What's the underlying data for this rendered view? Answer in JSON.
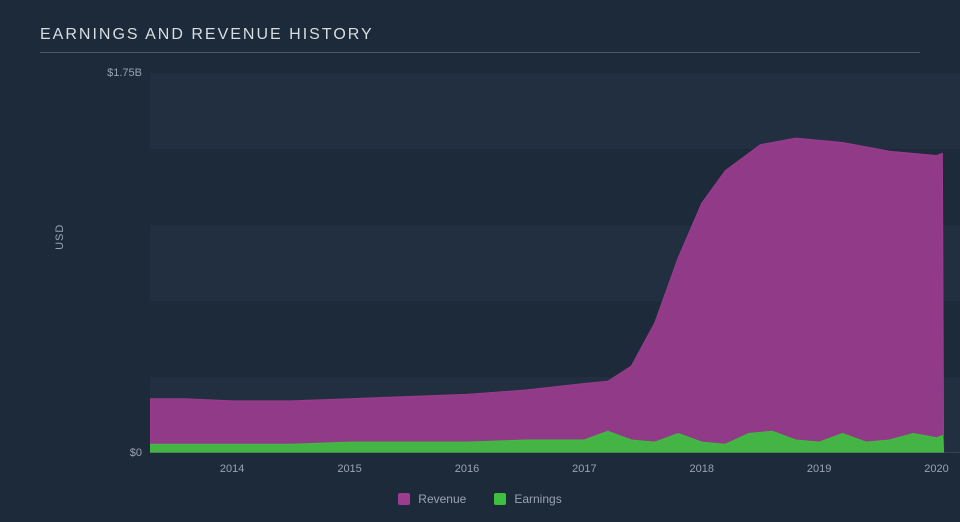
{
  "chart": {
    "type": "area",
    "title": "EARNINGS AND REVENUE HISTORY",
    "ylabel": "USD",
    "background_color": "#1c2a3a",
    "band_color": "#222f40",
    "grid_color": "#4a5664",
    "text_color": "#9aa3b0",
    "title_color": "#d8dde3",
    "title_fontsize": 16,
    "label_fontsize": 11,
    "ylim": [
      0,
      1.75
    ],
    "ytick_ref": 1.75,
    "yticks": [
      {
        "v": 0,
        "label": "$0"
      },
      {
        "v": 1.75,
        "label": "$1.75B"
      }
    ],
    "xlim": [
      2013.3,
      2020.2
    ],
    "xticks": [
      2014,
      2015,
      2016,
      2017,
      2018,
      2019,
      2020
    ],
    "series": [
      {
        "name": "Revenue",
        "color": "#9b3c8e",
        "data": [
          {
            "x": 2013.3,
            "y": 0.25
          },
          {
            "x": 2013.6,
            "y": 0.25
          },
          {
            "x": 2014.0,
            "y": 0.24
          },
          {
            "x": 2014.5,
            "y": 0.24
          },
          {
            "x": 2015.0,
            "y": 0.25
          },
          {
            "x": 2015.5,
            "y": 0.26
          },
          {
            "x": 2016.0,
            "y": 0.27
          },
          {
            "x": 2016.5,
            "y": 0.29
          },
          {
            "x": 2017.0,
            "y": 0.32
          },
          {
            "x": 2017.2,
            "y": 0.33
          },
          {
            "x": 2017.4,
            "y": 0.4
          },
          {
            "x": 2017.6,
            "y": 0.6
          },
          {
            "x": 2017.8,
            "y": 0.9
          },
          {
            "x": 2018.0,
            "y": 1.15
          },
          {
            "x": 2018.2,
            "y": 1.3
          },
          {
            "x": 2018.5,
            "y": 1.42
          },
          {
            "x": 2018.8,
            "y": 1.45
          },
          {
            "x": 2019.2,
            "y": 1.43
          },
          {
            "x": 2019.6,
            "y": 1.39
          },
          {
            "x": 2020.0,
            "y": 1.37
          },
          {
            "x": 2020.05,
            "y": 1.38
          },
          {
            "x": 2020.06,
            "y": 0.0
          }
        ]
      },
      {
        "name": "Earnings",
        "color": "#3ebf3e",
        "data": [
          {
            "x": 2013.3,
            "y": 0.04
          },
          {
            "x": 2014.0,
            "y": 0.04
          },
          {
            "x": 2014.5,
            "y": 0.04
          },
          {
            "x": 2015.0,
            "y": 0.05
          },
          {
            "x": 2015.5,
            "y": 0.05
          },
          {
            "x": 2016.0,
            "y": 0.05
          },
          {
            "x": 2016.5,
            "y": 0.06
          },
          {
            "x": 2017.0,
            "y": 0.06
          },
          {
            "x": 2017.2,
            "y": 0.1
          },
          {
            "x": 2017.4,
            "y": 0.06
          },
          {
            "x": 2017.6,
            "y": 0.05
          },
          {
            "x": 2017.8,
            "y": 0.09
          },
          {
            "x": 2018.0,
            "y": 0.05
          },
          {
            "x": 2018.2,
            "y": 0.04
          },
          {
            "x": 2018.4,
            "y": 0.09
          },
          {
            "x": 2018.6,
            "y": 0.1
          },
          {
            "x": 2018.8,
            "y": 0.06
          },
          {
            "x": 2019.0,
            "y": 0.05
          },
          {
            "x": 2019.2,
            "y": 0.09
          },
          {
            "x": 2019.4,
            "y": 0.05
          },
          {
            "x": 2019.6,
            "y": 0.06
          },
          {
            "x": 2019.8,
            "y": 0.09
          },
          {
            "x": 2020.0,
            "y": 0.07
          },
          {
            "x": 2020.05,
            "y": 0.08
          },
          {
            "x": 2020.06,
            "y": 0.0
          }
        ]
      }
    ],
    "legend": [
      {
        "label": "Revenue",
        "color": "#9b3c8e"
      },
      {
        "label": "Earnings",
        "color": "#3ebf3e"
      }
    ]
  }
}
